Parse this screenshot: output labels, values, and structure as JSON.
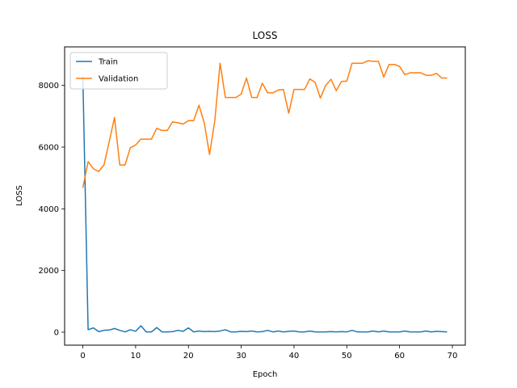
{
  "chart_data": {
    "type": "line",
    "title": "LOSS",
    "xlabel": "Epoch",
    "ylabel": "LOSS",
    "xlim": [
      -3.45,
      72.45
    ],
    "ylim": [
      -420,
      9250
    ],
    "xticks": [
      0,
      10,
      20,
      30,
      40,
      50,
      60,
      70
    ],
    "yticks": [
      0,
      2000,
      4000,
      6000,
      8000
    ],
    "grid": false,
    "legend": "top-left",
    "x": [
      0,
      1,
      2,
      3,
      4,
      5,
      6,
      7,
      8,
      9,
      10,
      11,
      12,
      13,
      14,
      15,
      16,
      17,
      18,
      19,
      20,
      21,
      22,
      23,
      24,
      25,
      26,
      27,
      28,
      29,
      30,
      31,
      32,
      33,
      34,
      35,
      36,
      37,
      38,
      39,
      40,
      41,
      42,
      43,
      44,
      45,
      46,
      47,
      48,
      49,
      50,
      51,
      52,
      53,
      54,
      55,
      56,
      57,
      58,
      59,
      60,
      61,
      62,
      63,
      64,
      65,
      66,
      67,
      68,
      69
    ],
    "series": [
      {
        "name": "Train",
        "color": "#1f77b4",
        "values": [
          8300,
          80,
          140,
          20,
          60,
          70,
          120,
          60,
          10,
          80,
          30,
          210,
          10,
          10,
          150,
          10,
          10,
          20,
          60,
          30,
          140,
          10,
          40,
          20,
          30,
          20,
          40,
          80,
          10,
          10,
          30,
          20,
          40,
          10,
          20,
          60,
          10,
          40,
          10,
          30,
          40,
          10,
          10,
          40,
          10,
          10,
          10,
          20,
          10,
          20,
          10,
          60,
          10,
          10,
          10,
          40,
          10,
          40,
          10,
          10,
          10,
          40,
          10,
          10,
          10,
          40,
          10,
          30,
          20,
          10
        ]
      },
      {
        "name": "Validation",
        "color": "#ff7f0e",
        "values": [
          4680,
          5530,
          5300,
          5210,
          5420,
          6180,
          6960,
          5420,
          5420,
          5980,
          6070,
          6260,
          6260,
          6260,
          6610,
          6540,
          6540,
          6820,
          6790,
          6750,
          6860,
          6860,
          7360,
          6790,
          5760,
          6860,
          8720,
          7610,
          7610,
          7610,
          7720,
          8240,
          7610,
          7610,
          8070,
          7760,
          7760,
          7850,
          7870,
          7100,
          7870,
          7870,
          7870,
          8210,
          8100,
          7590,
          8000,
          8200,
          7830,
          8130,
          8140,
          8720,
          8720,
          8720,
          8800,
          8780,
          8780,
          8270,
          8680,
          8680,
          8620,
          8350,
          8410,
          8410,
          8410,
          8330,
          8330,
          8390,
          8240,
          8240
        ]
      }
    ]
  }
}
